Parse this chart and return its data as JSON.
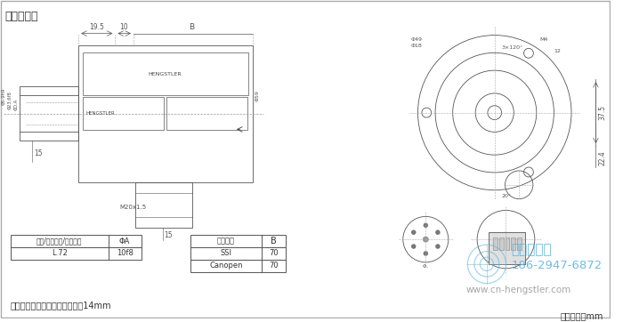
{
  "bg_color": "#ffffff",
  "title": "连接：径向",
  "title_color": "#333333",
  "title_fontsize": 9,
  "border_color": "#aaaaaa",
  "line_color": "#555555",
  "dim_color": "#555555",
  "table1_headers": [
    "安装/防护等级/轴－代码",
    "ΦA"
  ],
  "table1_rows": [
    [
      "L.72",
      "10f8"
    ]
  ],
  "table2_headers": [
    "电气接口",
    "B"
  ],
  "table2_rows": [
    [
      "SSI",
      "70"
    ],
    [
      "Canopen",
      "70"
    ]
  ],
  "footnote": "推荐的电缆密封管的螺纹长度：14mm",
  "footnote_fontsize": 7,
  "unit_text": "单位尺寸：mm",
  "unit_fontsize": 7,
  "watermark_line1": "西安德伍拓",
  "watermark_line2": "186-2947-6872",
  "watermark_line3": "www.cn-hengstler.com",
  "watermark_color": "#5ab4e0",
  "watermark_color2": "#888888"
}
